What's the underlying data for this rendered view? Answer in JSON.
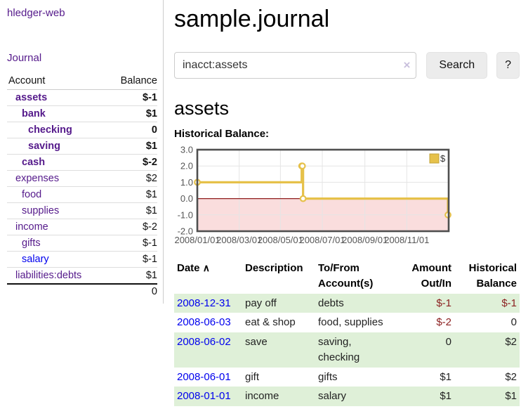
{
  "colors": {
    "link_purple": "#551A8B",
    "link_blue": "#0000EE",
    "negative_strong": "#7f1a1a",
    "negative_muted": "#b36e6e",
    "row_shade_green": "#dff0d8",
    "chart_line_gold": "#e6c14a",
    "chart_negative_band": "#fadddd",
    "chart_zero_line": "#8f1d1d"
  },
  "sidebar": {
    "app_title": "hledger-web",
    "nav_journal": "Journal",
    "accounts_table": {
      "headers": {
        "account": "Account",
        "balance": "Balance"
      },
      "rows": [
        {
          "name": "assets",
          "indent": 1,
          "bold": true,
          "balance": "$-1",
          "balance_style": "neg-strong",
          "link": "purple"
        },
        {
          "name": "bank",
          "indent": 2,
          "bold": true,
          "balance": "$1",
          "balance_style": "pos",
          "link": "purple"
        },
        {
          "name": "checking",
          "indent": 3,
          "bold": true,
          "balance": "0",
          "balance_style": "pos",
          "link": "purple"
        },
        {
          "name": "saving",
          "indent": 3,
          "bold": true,
          "balance": "$1",
          "balance_style": "pos",
          "link": "purple"
        },
        {
          "name": "cash",
          "indent": 2,
          "bold": true,
          "balance": "$-2",
          "balance_style": "neg-strong",
          "link": "purple"
        },
        {
          "name": "expenses",
          "indent": 1,
          "bold": false,
          "balance": "$2",
          "balance_style": "pos",
          "link": "purple"
        },
        {
          "name": "food",
          "indent": 2,
          "bold": false,
          "balance": "$1",
          "balance_style": "pos",
          "link": "purple"
        },
        {
          "name": "supplies",
          "indent": 2,
          "bold": false,
          "balance": "$1",
          "balance_style": "pos",
          "link": "purple"
        },
        {
          "name": "income",
          "indent": 1,
          "bold": false,
          "balance": "$-2",
          "balance_style": "neg-muted",
          "link": "purple"
        },
        {
          "name": "gifts",
          "indent": 2,
          "bold": false,
          "balance": "$-1",
          "balance_style": "neg-muted",
          "link": "purple"
        },
        {
          "name": "salary",
          "indent": 2,
          "bold": false,
          "balance": "$-1",
          "balance_style": "neg-muted",
          "link": "blue"
        },
        {
          "name": "liabilities:debts",
          "indent": 1,
          "bold": false,
          "balance": "$1",
          "balance_style": "pos",
          "link": "purple"
        }
      ],
      "total": "0"
    }
  },
  "header": {
    "title": "sample.journal"
  },
  "search": {
    "value": "inacct:assets",
    "clear_icon": "×",
    "button_label": "Search",
    "help_label": "?"
  },
  "account_page": {
    "heading": "assets",
    "chart_title": "Historical Balance:"
  },
  "chart_data": {
    "type": "line",
    "step": true,
    "title": "Historical Balance:",
    "series": [
      {
        "name": "$",
        "color": "#e6c14a",
        "points_day_value": [
          [
            0,
            1.0
          ],
          [
            152,
            2.0
          ],
          [
            153,
            2.0
          ],
          [
            154,
            0.0
          ],
          [
            365,
            -1.0
          ]
        ],
        "point_dates": [
          "2008-01-01",
          "2008-06-01",
          "2008-06-02",
          "2008-06-03",
          "2008-12-31"
        ]
      }
    ],
    "x_domain_days": [
      0,
      366
    ],
    "xticks": [
      {
        "day": 0,
        "label": "2008/01/01"
      },
      {
        "day": 61,
        "label": "2008/03/01"
      },
      {
        "day": 121,
        "label": "2008/05/01"
      },
      {
        "day": 182,
        "label": "2008/07/01"
      },
      {
        "day": 244,
        "label": "2008/09/01"
      },
      {
        "day": 305,
        "label": "2008/11/01"
      }
    ],
    "yticks": [
      {
        "v": 3,
        "label": "3.0"
      },
      {
        "v": 2,
        "label": "2.0"
      },
      {
        "v": 1,
        "label": "1.0"
      },
      {
        "v": 0,
        "label": "0.0"
      },
      {
        "v": -1,
        "label": "-1.0"
      },
      {
        "v": -2,
        "label": "-2.0"
      }
    ],
    "ylim": [
      -2,
      3
    ],
    "negative_band": [
      0,
      -2
    ],
    "grid": true,
    "legend": {
      "label": "$",
      "position": "top-right"
    }
  },
  "register_table": {
    "columns": {
      "date": "Date",
      "description": "Description",
      "accounts": "To/From Account(s)",
      "amount": "Amount Out/In",
      "balance": "Historical Balance"
    },
    "sort_icon": "∧",
    "rows": [
      {
        "date": "2008-12-31",
        "description": "pay off",
        "accounts": "debts",
        "amount": "$-1",
        "amount_neg": true,
        "balance": "$-1",
        "balance_neg": true,
        "shaded": true
      },
      {
        "date": "2008-06-03",
        "description": "eat & shop",
        "accounts": "food, supplies",
        "amount": "$-2",
        "amount_neg": true,
        "balance": "0",
        "balance_neg": false,
        "shaded": false
      },
      {
        "date": "2008-06-02",
        "description": "save",
        "accounts": "saving, checking",
        "amount": "0",
        "amount_neg": false,
        "balance": "$2",
        "balance_neg": false,
        "shaded": true
      },
      {
        "date": "2008-06-01",
        "description": "gift",
        "accounts": "gifts",
        "amount": "$1",
        "amount_neg": false,
        "balance": "$2",
        "balance_neg": false,
        "shaded": false
      },
      {
        "date": "2008-01-01",
        "description": "income",
        "accounts": "salary",
        "amount": "$1",
        "amount_neg": false,
        "balance": "$1",
        "balance_neg": false,
        "shaded": true
      }
    ]
  }
}
